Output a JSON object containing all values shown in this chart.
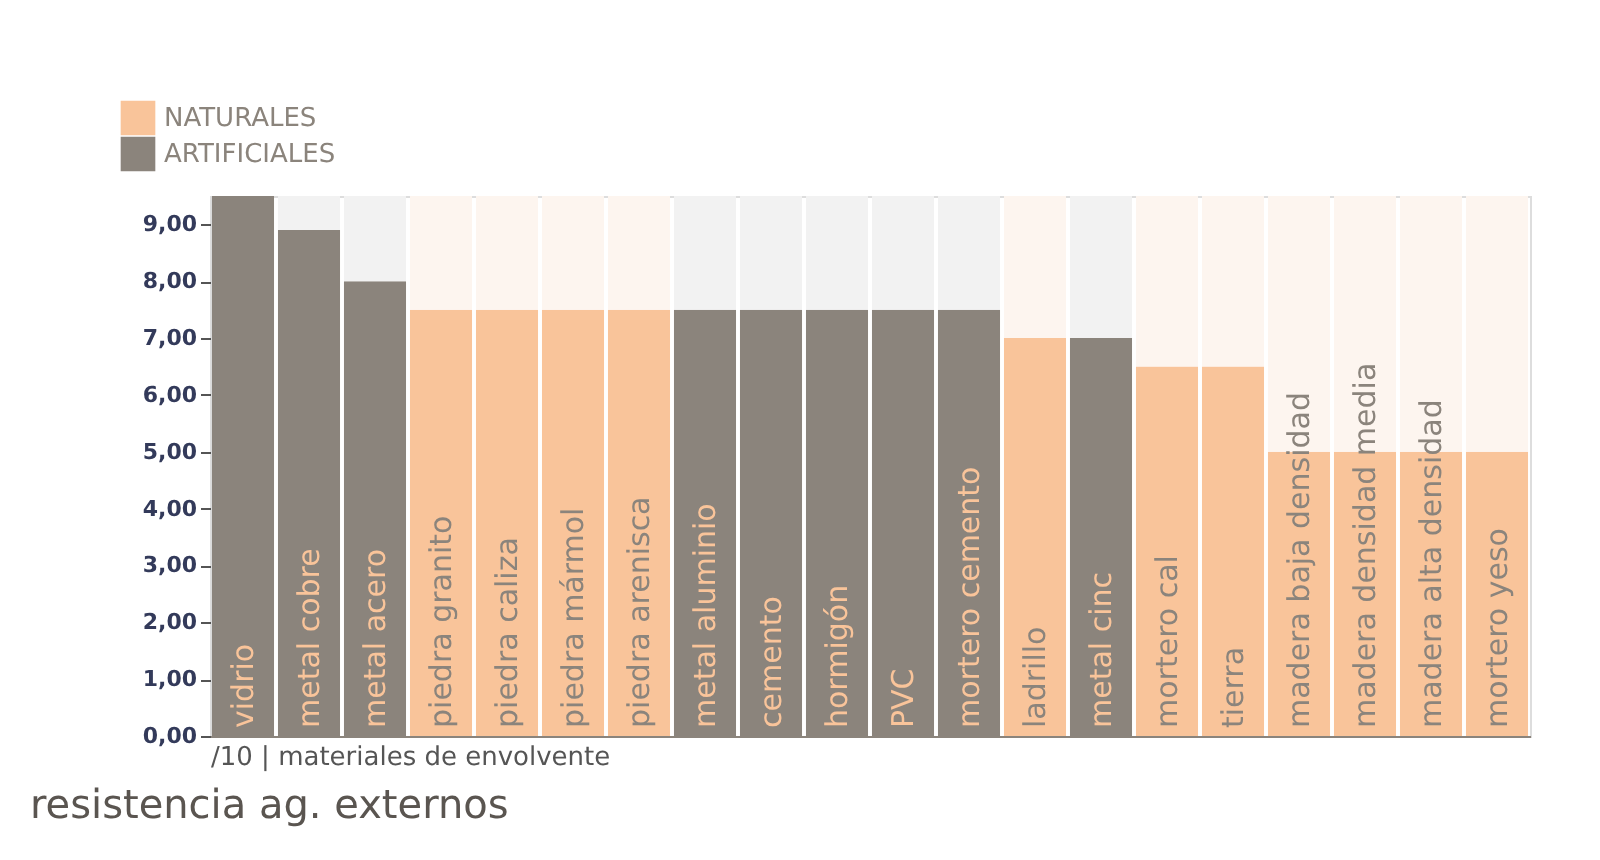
{
  "chart_data": {
    "type": "bar",
    "stacked": true,
    "title": "resistencia  ag. externos",
    "xlabel": "/10 | materiales de envolvente",
    "categories": [
      "vidrio",
      "metal cobre",
      "metal acero",
      "piedra granito",
      "piedra caliza",
      "piedra mármol",
      "piedra arenisca",
      "metal aluminio",
      "cemento",
      "hormigón",
      "PVC",
      "mortero cemento",
      "ladrillo",
      "metal cinc",
      "mortero cal",
      "tierra",
      "madera baja densidad",
      "madera densidad media",
      "madera alta densidad",
      "mortero yeso"
    ],
    "series": [
      {
        "name": "NATURALES",
        "color": "#f9c49a",
        "values": [
          null,
          null,
          null,
          7.5,
          7.5,
          7.5,
          7.5,
          null,
          null,
          null,
          null,
          null,
          7.0,
          null,
          6.5,
          6.5,
          5.0,
          5.0,
          5.0,
          5.0
        ]
      },
      {
        "name": "ARTIFICIALES",
        "color": "#8b847c",
        "values": [
          9.5,
          8.9,
          8.0,
          null,
          null,
          null,
          null,
          7.5,
          7.5,
          7.5,
          7.5,
          7.5,
          null,
          7.0,
          null,
          null,
          null,
          null,
          null,
          null
        ]
      },
      {
        "colors": [
          "#f2f2f2",
          "#f2f2f2",
          "#f2f2f2",
          "#fdf5ef",
          "#fdf5ef",
          "#fdf5ef",
          "#fdf5ef",
          "#f2f2f2",
          "#f2f2f2",
          "#f2f2f2",
          "#f2f2f2",
          "#f2f2f2",
          "#fdf5ef",
          "#f2f2f2",
          "#fdf5ef",
          "#fdf5ef",
          "#fdf5ef",
          "#fdf5ef",
          "#fdf5ef",
          "#fdf5ef"
        ],
        "values": [
          0.0,
          0.6,
          1.5,
          2.0,
          2.0,
          2.0,
          2.0,
          2.0,
          2.0,
          2.0,
          2.0,
          2.0,
          2.5,
          2.5,
          3.0,
          3.0,
          4.5,
          4.5,
          4.5,
          4.5
        ]
      }
    ],
    "ylim": [
      0,
      9.5
    ],
    "yticks": [
      {
        "value": 0,
        "label": "0,00"
      },
      {
        "value": 1,
        "label": "1,00"
      },
      {
        "value": 2,
        "label": "2,00"
      },
      {
        "value": 3,
        "label": "3,00"
      },
      {
        "value": 4,
        "label": "4,00"
      },
      {
        "value": 5,
        "label": "5,00"
      },
      {
        "value": 6,
        "label": "6,00"
      },
      {
        "value": 7,
        "label": "7,00"
      },
      {
        "value": 8,
        "label": "8,00"
      },
      {
        "value": 9,
        "label": "9,00"
      }
    ],
    "grid": false,
    "legend": "top left"
  }
}
